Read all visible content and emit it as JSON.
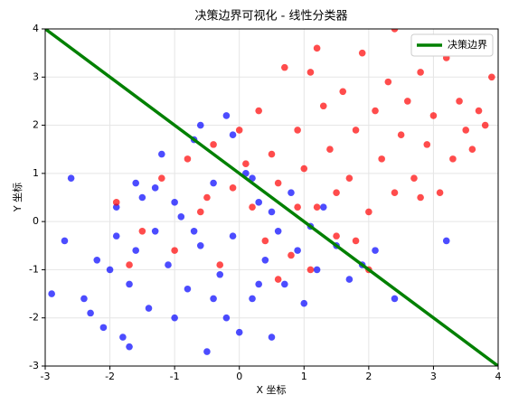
{
  "chart_data": {
    "type": "scatter",
    "title": "决策边界可视化 - 线性分类器",
    "x_label": "X 坐标",
    "y_label": "Y 坐标",
    "xlim": [
      -3,
      4
    ],
    "ylim": [
      -3,
      4
    ],
    "xticks": [
      -3,
      -2,
      -1,
      0,
      1,
      2,
      3,
      4
    ],
    "yticks": [
      -3,
      -2,
      -1,
      0,
      1,
      2,
      3,
      4
    ],
    "grid": true,
    "legend": "upper right",
    "series": [
      {
        "color": "#0000ff",
        "x": [
          -2.9,
          -2.6,
          -2.7,
          -2.4,
          -2.3,
          -2.1,
          -2.0,
          -1.9,
          -1.8,
          -1.7,
          -1.6,
          -1.5,
          -1.4,
          -1.3,
          -1.2,
          -1.1,
          -1.0,
          -0.9,
          -0.8,
          -0.7,
          -0.6,
          -0.5,
          -0.4,
          -0.3,
          -0.2,
          -0.1,
          0.0,
          0.1,
          0.2,
          0.3,
          0.4,
          0.5,
          0.6,
          0.7,
          0.8,
          0.9,
          1.0,
          1.1,
          1.2,
          1.3,
          1.5,
          1.7,
          1.9,
          2.1,
          2.4,
          3.2,
          -2.2,
          -1.9,
          -1.6,
          -1.3,
          -1.0,
          -0.7,
          -0.4,
          -0.1,
          0.2,
          0.5,
          -0.6,
          -1.7,
          -0.2,
          0.3
        ],
        "values": [
          -1.5,
          0.9,
          -0.4,
          -1.6,
          -1.9,
          -2.2,
          -1.0,
          0.3,
          -2.4,
          -1.3,
          -0.6,
          0.5,
          -1.8,
          -0.2,
          1.4,
          -0.9,
          -2.0,
          0.1,
          -1.4,
          1.7,
          -0.5,
          -2.7,
          0.8,
          -1.1,
          2.2,
          -0.3,
          -2.3,
          1.0,
          -1.6,
          0.4,
          -0.8,
          -2.4,
          -0.2,
          -1.3,
          0.6,
          -0.6,
          -1.7,
          -0.1,
          -1.0,
          0.3,
          -0.5,
          -1.2,
          -0.9,
          -0.6,
          -1.6,
          -0.4,
          -0.8,
          -0.3,
          0.8,
          0.7,
          0.4,
          -0.2,
          -1.6,
          1.8,
          0.9,
          0.2,
          2.0,
          -2.6,
          -2.0,
          -1.3
        ]
      },
      {
        "color": "#ff0000",
        "x": [
          -1.9,
          -1.7,
          -1.5,
          -1.2,
          -1.0,
          -0.8,
          -0.6,
          -0.4,
          -0.3,
          -0.1,
          0.0,
          0.2,
          0.3,
          0.4,
          0.5,
          0.6,
          0.7,
          0.8,
          0.9,
          1.0,
          1.1,
          1.2,
          1.3,
          1.4,
          1.5,
          1.6,
          1.7,
          1.8,
          1.9,
          2.0,
          2.1,
          2.2,
          2.3,
          2.4,
          2.5,
          2.6,
          2.7,
          2.8,
          2.9,
          3.0,
          3.1,
          3.2,
          3.3,
          3.4,
          3.5,
          3.6,
          3.7,
          3.8,
          3.9,
          1.2,
          2.4,
          0.9,
          1.5,
          1.1,
          0.6,
          2.0,
          1.8,
          0.1,
          -0.5,
          2.8
        ],
        "values": [
          0.4,
          -0.9,
          -0.2,
          0.9,
          -0.6,
          1.3,
          0.2,
          1.6,
          -0.9,
          0.7,
          1.9,
          0.3,
          2.3,
          -0.4,
          1.4,
          0.8,
          3.2,
          -0.7,
          1.9,
          1.1,
          3.1,
          0.3,
          2.4,
          1.5,
          -0.3,
          2.7,
          0.9,
          1.9,
          3.5,
          0.2,
          2.3,
          1.3,
          2.9,
          0.6,
          1.8,
          2.5,
          0.9,
          3.1,
          1.6,
          2.2,
          0.6,
          3.4,
          1.3,
          2.5,
          1.9,
          1.5,
          2.3,
          2.0,
          3.0,
          3.6,
          4.0,
          0.3,
          0.6,
          -1.0,
          -1.2,
          -1.0,
          -0.4,
          1.2,
          0.5,
          0.5
        ]
      }
    ],
    "boundary": {
      "name": "决策边界",
      "color": "#008000",
      "x": [
        -3,
        4
      ],
      "values": [
        4,
        -3
      ]
    }
  }
}
